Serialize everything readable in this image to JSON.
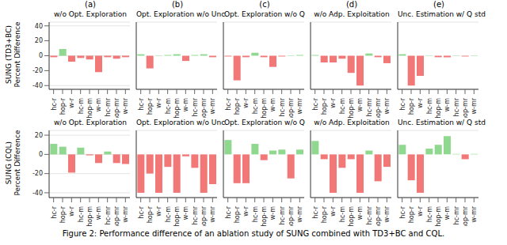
{
  "caption": "Figure 2: Performance difference of an ablation study of SUNG combined with TD3+BC and CQL.",
  "chart_data": [
    {
      "type": "bar",
      "title": "(a)",
      "subtitle": "w/o Opt. Exploration",
      "ylabel": "SUNG (TD3+BC)\nPercent Difference",
      "categories": [
        "hc-r",
        "hop-r",
        "w-r",
        "hc-m",
        "hop-m",
        "w-m",
        "hc-mr",
        "hop-mr",
        "w-mr"
      ],
      "values": [
        -2,
        9,
        -8,
        -3,
        -5,
        -22,
        -2,
        -4,
        -2
      ],
      "colors": [
        "#f27777",
        "#90d890",
        "#f27777",
        "#f27777",
        "#f27777",
        "#f27777",
        "#f27777",
        "#f27777",
        "#f27777"
      ],
      "ylim": [
        -45,
        45
      ],
      "yticks": [
        -40,
        -20,
        0,
        20,
        40
      ],
      "grid": true
    },
    {
      "type": "bar",
      "title": "(b)",
      "subtitle": "Opt. Exploration w/o Unc.",
      "categories": [
        "hc-r",
        "hop-r",
        "w-r",
        "hc-m",
        "hop-m",
        "w-m",
        "hc-mr",
        "hop-mr",
        "w-mr"
      ],
      "values": [
        2,
        -17,
        0.5,
        1,
        2,
        -7,
        1,
        2,
        -2
      ],
      "colors": [
        "#90d890",
        "#f27777",
        "#90d890",
        "#90d890",
        "#90d890",
        "#f27777",
        "#90d890",
        "#90d890",
        "#f27777"
      ],
      "ylim": [
        -45,
        45
      ],
      "yticks": [
        -40,
        -20,
        0,
        20,
        40
      ],
      "grid": true,
      "tick_labels": "x"
    },
    {
      "type": "bar",
      "title": "(c)",
      "subtitle": "Opt. Exploration w/o Q",
      "categories": [
        "hc-r",
        "hop-r",
        "w-r",
        "hc-m",
        "hop-m",
        "w-m",
        "hc-mr",
        "hop-mr",
        "w-mr"
      ],
      "values": [
        -1,
        -33,
        -2,
        4,
        -2,
        -15,
        -1,
        0.5,
        1
      ],
      "colors": [
        "#f27777",
        "#f27777",
        "#f27777",
        "#90d890",
        "#f27777",
        "#f27777",
        "#f27777",
        "#90d890",
        "#90d890"
      ],
      "ylim": [
        -45,
        45
      ],
      "yticks": [
        -40,
        -20,
        0,
        20,
        40
      ],
      "grid": true,
      "tick_labels": "x"
    },
    {
      "type": "bar",
      "title": "(d)",
      "subtitle": "w/o Adp. Exploitation",
      "categories": [
        "hc-r",
        "hop-r",
        "w-r",
        "hc-m",
        "hop-m",
        "w-m",
        "hc-mr",
        "hop-mr",
        "w-mr"
      ],
      "values": [
        1,
        -9,
        -9,
        -4,
        -23,
        -40,
        3,
        -2,
        -10
      ],
      "colors": [
        "#90d890",
        "#f27777",
        "#f27777",
        "#f27777",
        "#f27777",
        "#f27777",
        "#90d890",
        "#f27777",
        "#f27777"
      ],
      "ylim": [
        -45,
        45
      ],
      "yticks": [
        -40,
        -20,
        0,
        20,
        40
      ],
      "grid": true,
      "tick_labels": "x"
    },
    {
      "type": "bar",
      "title": "(e)",
      "subtitle": "Unc. Estimation w/ Q std",
      "categories": [
        "hc-r",
        "hop-r",
        "w-r",
        "hc-m",
        "hop-m",
        "w-m",
        "hc-mr",
        "hop-mr",
        "w-mr"
      ],
      "values": [
        2,
        -40,
        -27,
        0.5,
        -2,
        -2,
        0.5,
        -1,
        0.5
      ],
      "colors": [
        "#90d890",
        "#f27777",
        "#f27777",
        "#90d890",
        "#f27777",
        "#f27777",
        "#90d890",
        "#f27777",
        "#90d890"
      ],
      "ylim": [
        -45,
        45
      ],
      "yticks": [
        -40,
        -20,
        0,
        20,
        40
      ],
      "grid": true,
      "tick_labels": "x"
    },
    {
      "type": "bar",
      "subtitle": "w/o Opt. Exploration",
      "ylabel": "SUNG (CQL)\nPercent Difference",
      "categories": [
        "hc-r",
        "hop-r",
        "w-r",
        "hc-m",
        "hop-m",
        "w-m",
        "hc-mr",
        "hop-mr",
        "w-mr"
      ],
      "values": [
        11,
        8,
        -19,
        7,
        -1,
        -9,
        3,
        -9,
        -10
      ],
      "colors": [
        "#90d890",
        "#90d890",
        "#f27777",
        "#90d890",
        "#f27777",
        "#f27777",
        "#90d890",
        "#f27777",
        "#f27777"
      ],
      "ylim": [
        -45,
        25
      ],
      "yticks": [
        -40,
        -20,
        0,
        20
      ],
      "grid": true
    },
    {
      "type": "bar",
      "subtitle": "Opt. Exploration w/o Unc.",
      "categories": [
        "hc-r",
        "hop-r",
        "w-r",
        "hc-m",
        "hop-m",
        "w-m",
        "hc-mr",
        "hop-mr",
        "w-mr"
      ],
      "values": [
        -40,
        -20,
        -40,
        -13,
        -40,
        -2,
        -14,
        -40,
        -31
      ],
      "colors": [
        "#f27777",
        "#f27777",
        "#f27777",
        "#f27777",
        "#f27777",
        "#f27777",
        "#f27777",
        "#f27777",
        "#f27777"
      ],
      "ylim": [
        -45,
        25
      ],
      "yticks": [
        -40,
        -20,
        0,
        20
      ],
      "grid": true,
      "tick_labels": "x"
    },
    {
      "type": "bar",
      "subtitle": "Opt. Exploration w/o Q",
      "categories": [
        "hc-r",
        "hop-r",
        "w-r",
        "hc-m",
        "hop-m",
        "w-m",
        "hc-mr",
        "hop-mr",
        "w-mr"
      ],
      "values": [
        15,
        -30,
        -30,
        11,
        -6,
        4,
        5,
        -25,
        5
      ],
      "colors": [
        "#90d890",
        "#f27777",
        "#f27777",
        "#90d890",
        "#f27777",
        "#90d890",
        "#90d890",
        "#f27777",
        "#90d890"
      ],
      "ylim": [
        -45,
        25
      ],
      "yticks": [
        -40,
        -20,
        0,
        20
      ],
      "grid": true,
      "tick_labels": "x"
    },
    {
      "type": "bar",
      "subtitle": "w/o Adp. Exploitation",
      "categories": [
        "hc-r",
        "hop-r",
        "w-r",
        "hc-m",
        "hop-m",
        "w-m",
        "hc-mr",
        "hop-mr",
        "w-mr"
      ],
      "values": [
        14,
        -5,
        -40,
        -14,
        -5,
        -40,
        4,
        -28,
        -13
      ],
      "colors": [
        "#90d890",
        "#f27777",
        "#f27777",
        "#f27777",
        "#f27777",
        "#f27777",
        "#90d890",
        "#f27777",
        "#f27777"
      ],
      "ylim": [
        -45,
        25
      ],
      "yticks": [
        -40,
        -20,
        0,
        20
      ],
      "grid": true,
      "tick_labels": "x"
    },
    {
      "type": "bar",
      "subtitle": "Unc. Estimation w/ Q std",
      "categories": [
        "hc-r",
        "hop-r",
        "w-r",
        "hc-m",
        "hop-m",
        "w-m",
        "hc-mr",
        "hop-mr",
        "w-mr"
      ],
      "values": [
        10,
        -27,
        -40,
        6,
        10,
        19,
        0.5,
        -5,
        0.5
      ],
      "colors": [
        "#90d890",
        "#f27777",
        "#f27777",
        "#90d890",
        "#90d890",
        "#90d890",
        "#90d890",
        "#f27777",
        "#90d890"
      ],
      "ylim": [
        -45,
        25
      ],
      "yticks": [
        -40,
        -20,
        0,
        20
      ],
      "grid": true,
      "tick_labels": "x"
    }
  ]
}
